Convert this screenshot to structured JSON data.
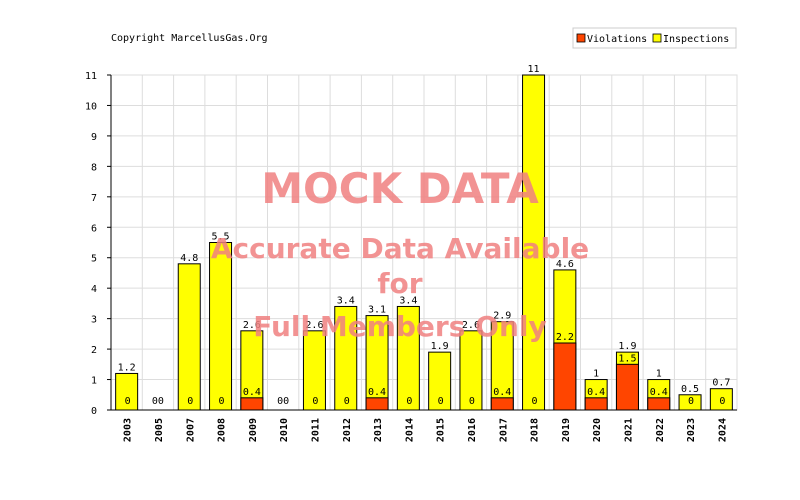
{
  "copyright": "Copyright MarcellusGas.Org",
  "watermark": {
    "line1": "MOCK DATA",
    "line2": "Accurate Data Available",
    "line3": "for",
    "line4": "Full Members Only"
  },
  "colors": {
    "violations": "#ff4500",
    "inspections": "#ffff00",
    "grid": "#dddddd",
    "border": "#000000"
  },
  "chart_data": {
    "type": "bar",
    "title": "",
    "xlabel": "",
    "ylabel": "",
    "ylim": [
      0,
      11
    ],
    "yticks": [
      "0",
      "1",
      "2",
      "3",
      "4",
      "5",
      "6",
      "7",
      "8",
      "9",
      "10",
      "11"
    ],
    "grid": true,
    "legend_position": "top-right",
    "categories": [
      "2003",
      "2005",
      "2007",
      "2008",
      "2009",
      "2010",
      "2011",
      "2012",
      "2013",
      "2014",
      "2015",
      "2016",
      "2017",
      "2018",
      "2019",
      "2020",
      "2021",
      "2022",
      "2023",
      "2024"
    ],
    "series": [
      {
        "name": "Violations",
        "values": [
          0,
          0,
          0,
          0,
          0.4,
          0,
          0,
          0,
          0.4,
          0,
          0,
          0,
          0.4,
          0,
          2.2,
          0.4,
          1.5,
          0.4,
          0,
          0
        ],
        "labels": [
          "0",
          "0",
          "0",
          "0",
          "0.4",
          "0",
          "0",
          "0",
          "0.4",
          "0",
          "0",
          "0",
          "0.4",
          "0",
          "2.2",
          "0.4",
          "1.5",
          "0.4",
          "0",
          "0"
        ]
      },
      {
        "name": "Inspections",
        "values": [
          1.2,
          0,
          4.8,
          5.5,
          2.6,
          0,
          2.6,
          3.4,
          3.1,
          3.4,
          1.9,
          2.6,
          2.9,
          11,
          4.6,
          1,
          1.9,
          1,
          0.5,
          0.7
        ],
        "labels": [
          "1.2",
          "0",
          "4.8",
          "5.5",
          "2.6",
          "0",
          "2.6",
          "3.4",
          "3.1",
          "3.4",
          "1.9",
          "2.6",
          "2.9",
          "11",
          "4.6",
          "1",
          "1.9",
          "1",
          "0.5",
          "0.7"
        ]
      }
    ]
  }
}
